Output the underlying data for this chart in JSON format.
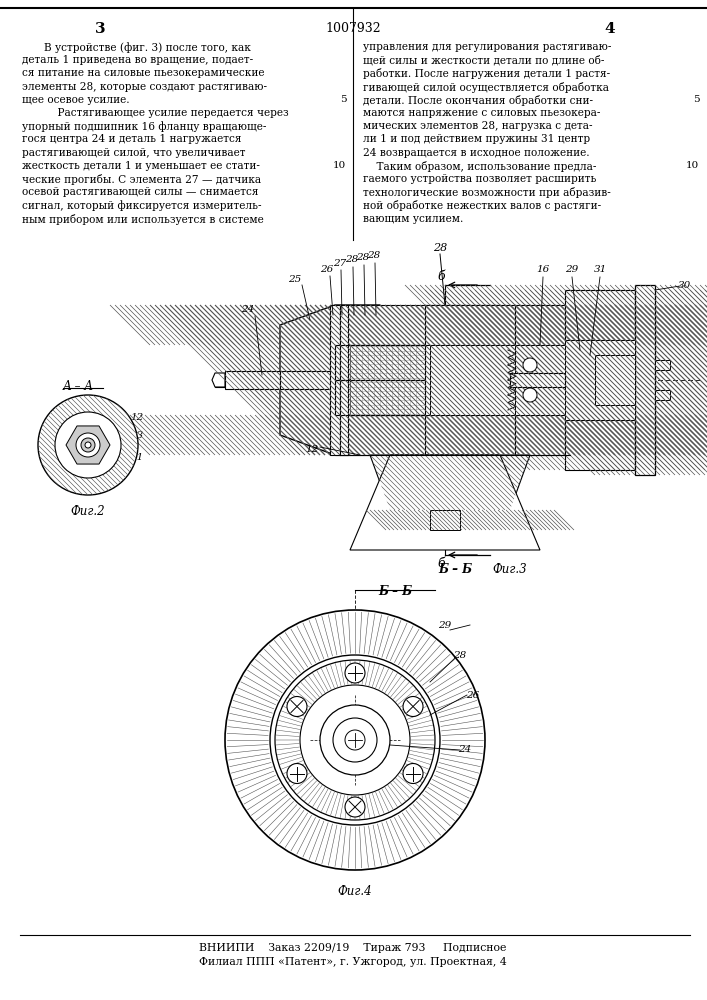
{
  "page_number_left": "3",
  "page_number_right": "4",
  "patent_number": "1007932",
  "text_left": "В устройстве (фиг. 3) после того, как\nдеталь 1 приведена во вращение, подает-\nся питание на силовые пьезокерамические\nэлементы 28, которые создают растягиваю-\nщее осевое усилие.\n    Растягивающее усилие передается через\nупорный подшипник 16 фланцу вращающе-\nгося центра 24 и деталь 1 нагружается\nрастягивающей силой, что увеличивает\nжесткость детали 1 и уменьшает ее стати-\nческие прогибы. С элемента 27 — датчика\nосевой растягивающей силы — снимается\nсигнал, который фиксируется измеритель-\nным прибором или используется в системе",
  "text_right": "управления для регулирования растягиваю-\nщей силы и жесткости детали по длине об-\nработки. После нагружения детали 1 растя-\nгивающей силой осуществляется обработка\nдетали. После окончания обработки сни-\nмаются напряжение с силовых пьезокера-\nмических элементов 28, нагрузка с дета-\nли 1 и под действием пружины 31 центр\n24 возвращается в исходное положение.\n    Таким образом, использование предла-\nгаемого устройства позволяет расширить\nтехнологические возможности при абразив-\nной обработке нежестких валов с растяги-\nвающим усилием.",
  "footer_line1": "ВНИИПИ    Заказ 2209/19    Тираж 793     Подписное",
  "footer_line2": "Филиал ППП «Патент», г. Ужгород, ул. Проектная, 4",
  "fig2_label": "Фиг.2",
  "fig3_label": "Фиг.3",
  "fig4_label": "Фиг.4",
  "section_aa": "А – А",
  "section_bb": "Б – Б",
  "bg_color": "#ffffff",
  "text_color": "#000000",
  "line_color": "#000000",
  "hatch_color": "#555555"
}
